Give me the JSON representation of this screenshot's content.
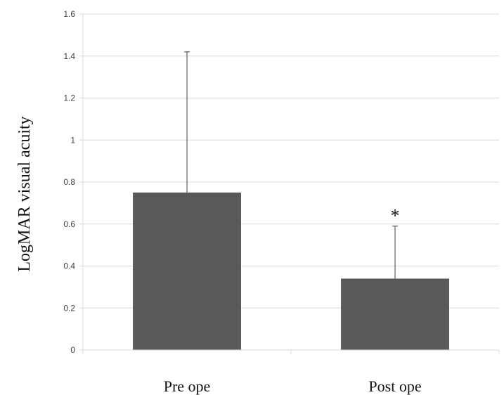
{
  "chart_data": {
    "type": "bar",
    "title": "",
    "xlabel": "",
    "ylabel": "LogMAR visual acuity",
    "categories": [
      "Pre ope",
      "Post ope"
    ],
    "values": [
      0.75,
      0.34
    ],
    "error_upper": [
      0.67,
      0.25
    ],
    "significance": [
      "",
      "*"
    ],
    "ylim": [
      0,
      1.6
    ],
    "yticks": [
      "0",
      "0.2",
      "0.4",
      "0.6",
      "0.8",
      "1",
      "1.2",
      "1.4",
      "1.6"
    ],
    "grid": true,
    "bar_color": "#595959",
    "grid_color": "#d9d9d9",
    "error_color": "#404040"
  }
}
